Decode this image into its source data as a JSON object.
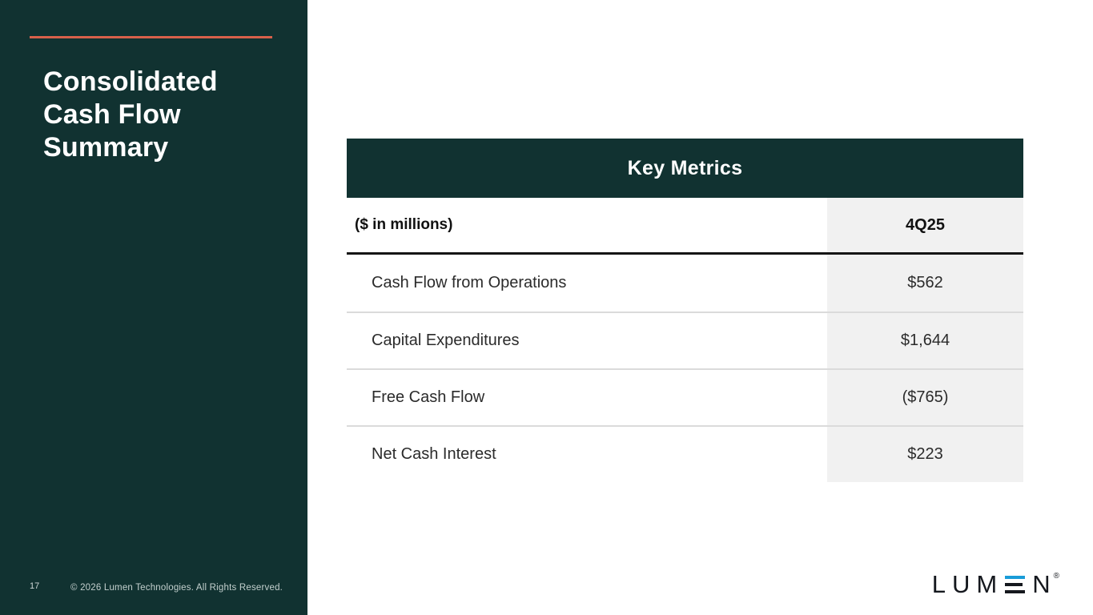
{
  "slide": {
    "page_number": "17",
    "copyright": "© 2026 Lumen Technologies. All Rights Reserved.",
    "title": "Consolidated Cash Flow Summary",
    "title_lines": [
      "Consolidated",
      "Cash Flow",
      "Summary"
    ]
  },
  "table": {
    "header": "Key Metrics",
    "unit_label": "($ in millions)",
    "period_label": "4Q25",
    "rows": [
      {
        "label": "Cash Flow from Operations",
        "value": "$562"
      },
      {
        "label": "Capital Expenditures",
        "value": "$1,644"
      },
      {
        "label": "Free Cash Flow",
        "value": "($765)"
      },
      {
        "label": "Net Cash Interest",
        "value": "$223"
      }
    ]
  },
  "logo": {
    "part_before_e": "LUM",
    "part_after_e": "N",
    "registered": "®",
    "name": "Lumen"
  },
  "colors": {
    "sidebar_teal": "#113231",
    "accent_orange": "#d8604a",
    "value_column_gray": "#f1f1f1",
    "logo_blue": "#199cd8",
    "row_divider": "#dbdbdb"
  },
  "chart_data": {
    "type": "table",
    "title": "Key Metrics",
    "columns": [
      "($ in millions)",
      "4Q25"
    ],
    "rows": [
      [
        "Cash Flow from Operations",
        "$562"
      ],
      [
        "Capital Expenditures",
        "$1,644"
      ],
      [
        "Free Cash Flow",
        "($765)"
      ],
      [
        "Net Cash Interest",
        "$223"
      ]
    ]
  }
}
